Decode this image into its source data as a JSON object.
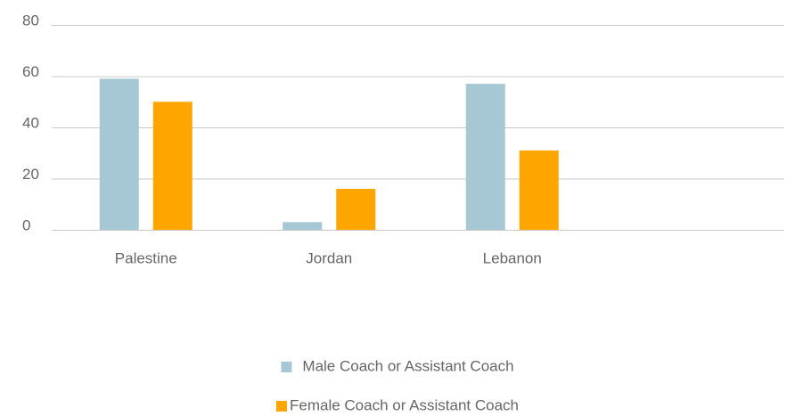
{
  "chart_data": {
    "type": "bar",
    "categories": [
      "Palestine",
      "Jordan",
      "Lebanon",
      null
    ],
    "series": [
      {
        "name": "Male Coach or Assistant Coach",
        "color": "#a5c8d4",
        "values": [
          59,
          3,
          57,
          null
        ]
      },
      {
        "name": "Female Coach or Assistant Coach",
        "color": "#ffa500",
        "values": [
          50,
          16,
          31,
          null
        ]
      }
    ],
    "ylim": [
      0,
      80
    ],
    "yticks": [
      0,
      20,
      40,
      60,
      80
    ],
    "grid": true,
    "legend": "bottom"
  }
}
